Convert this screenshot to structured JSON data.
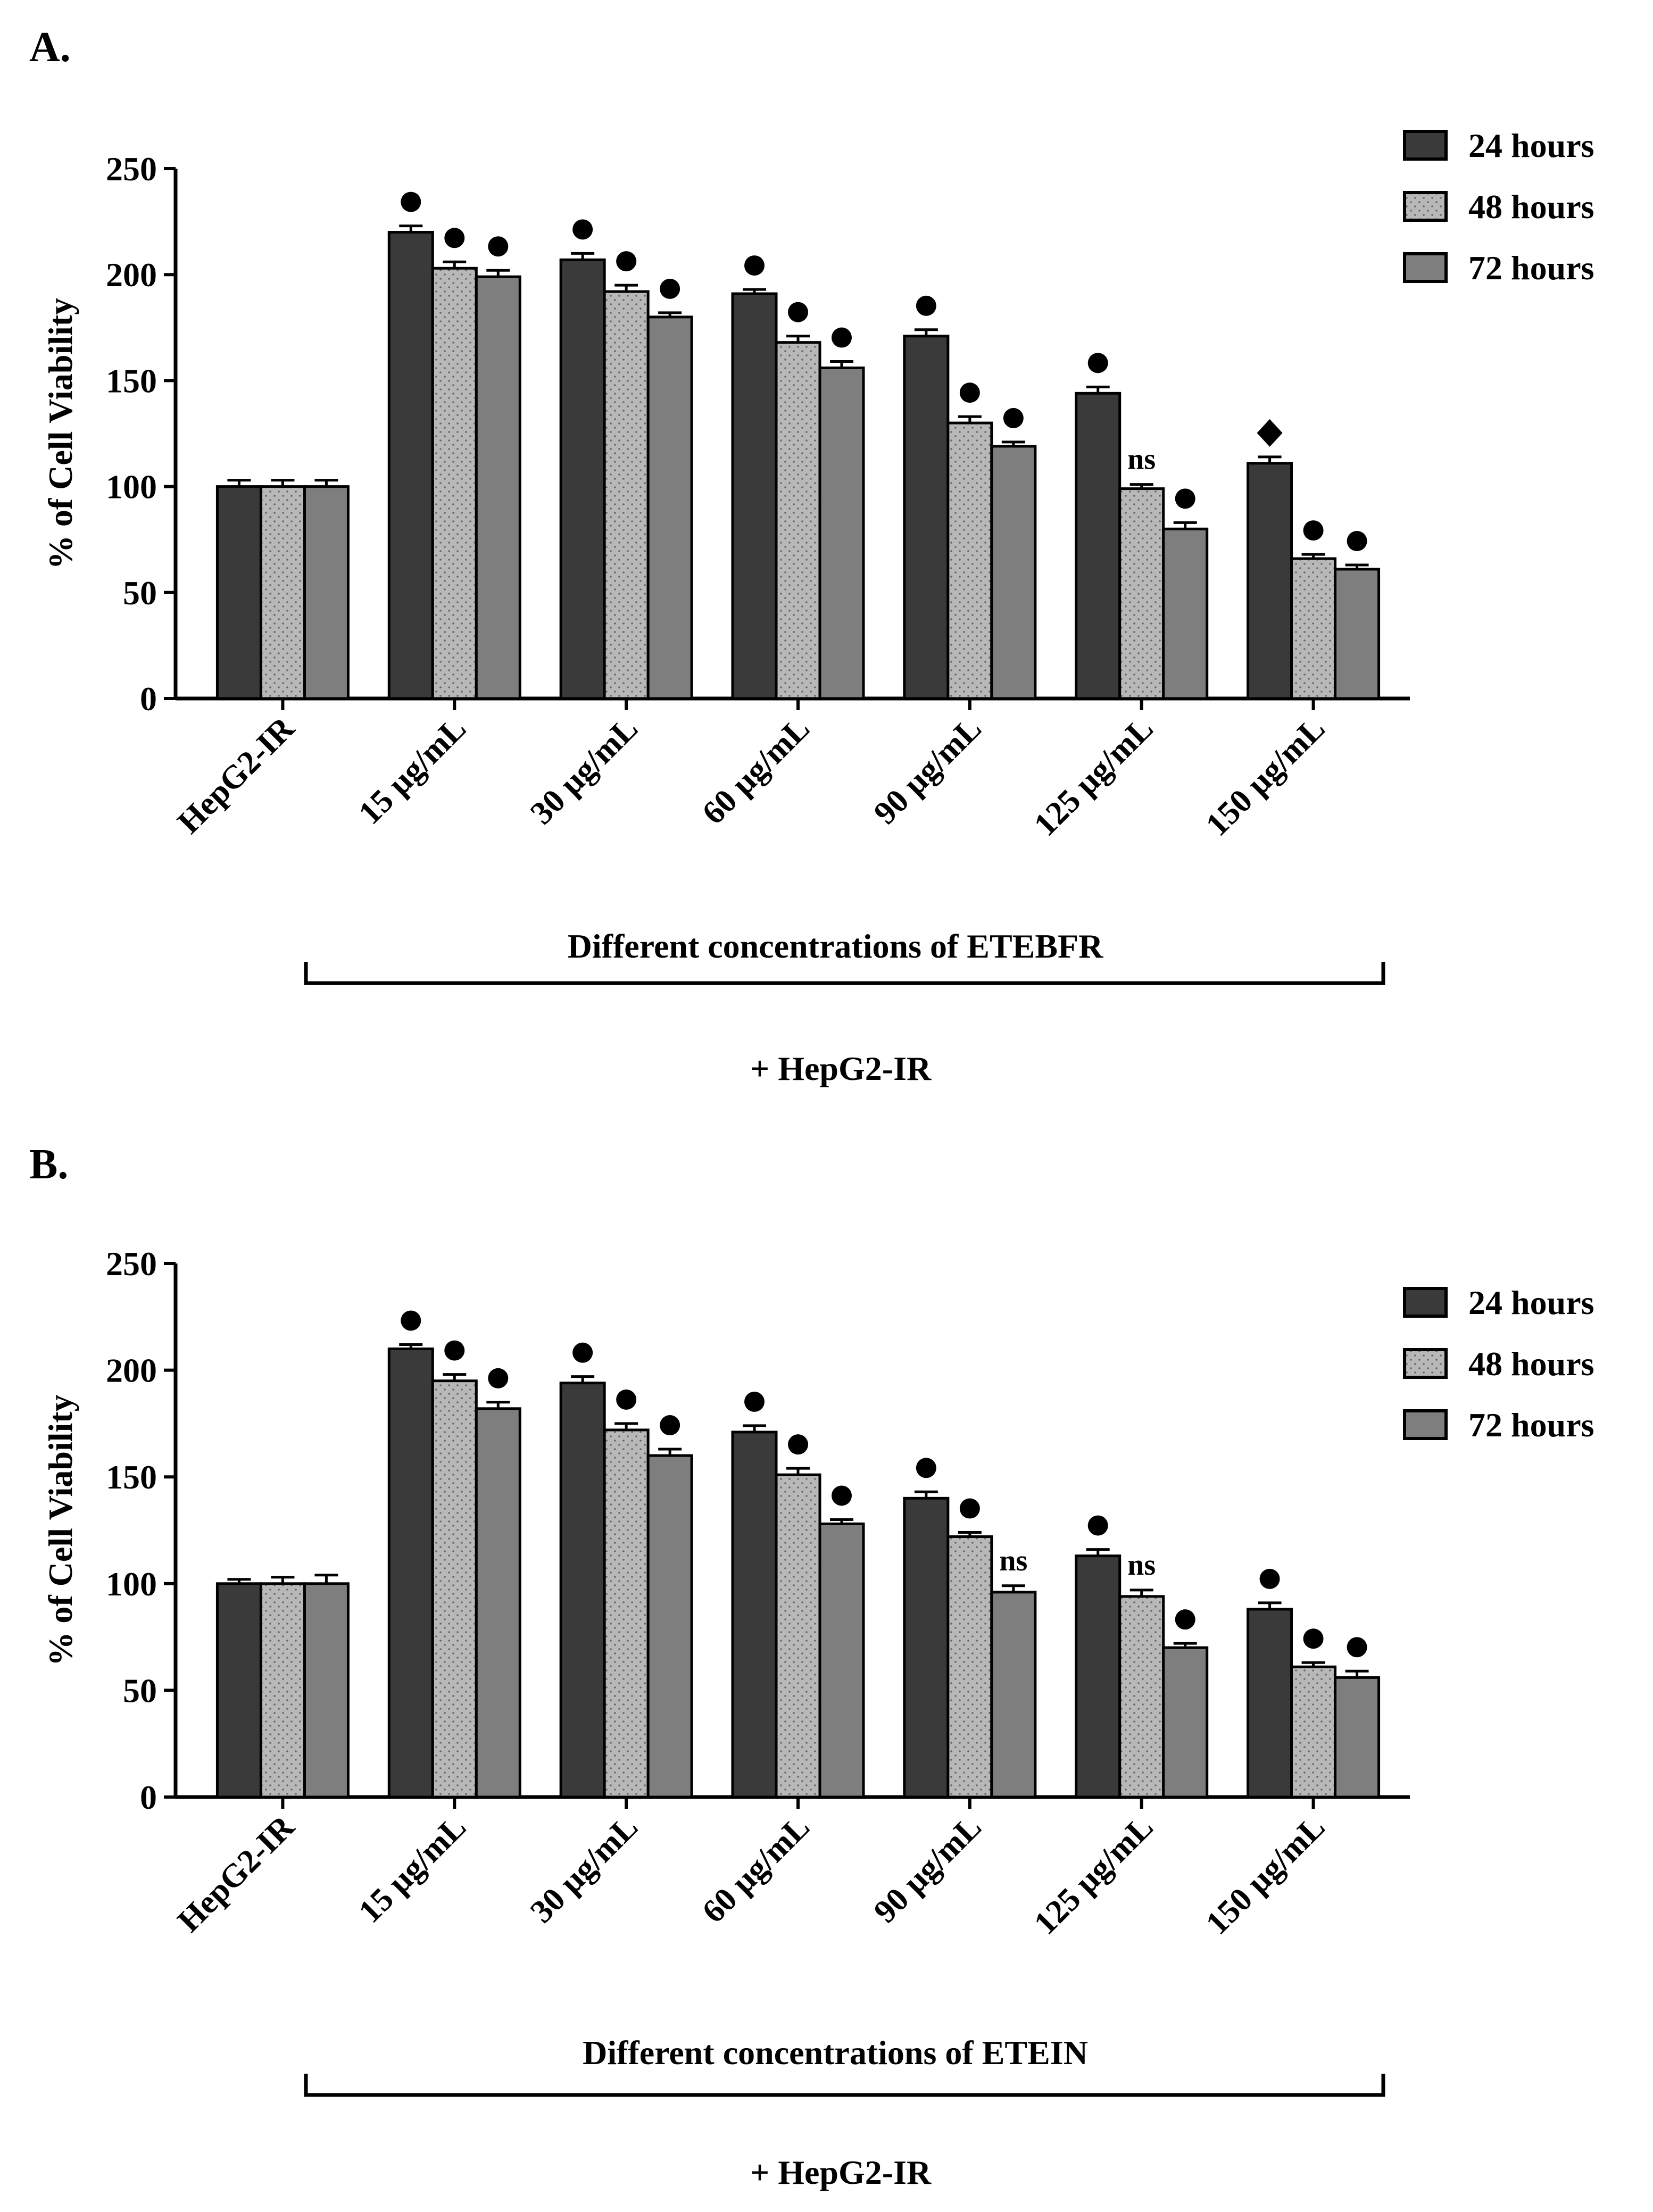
{
  "chart_data": [
    {
      "type": "bar",
      "panel_label": "A.",
      "title": "",
      "ylabel": "% of Cell Viability",
      "xlabel": "",
      "ylim": [
        0,
        250
      ],
      "yticks": [
        "0",
        "50",
        "100",
        "150",
        "200",
        "250"
      ],
      "categories": [
        "HepG2-IR",
        "15 µg/mL",
        "30 µg/mL",
        "60 µg/mL",
        "90 µg/mL",
        "125 µg/mL",
        "150 µg/mL"
      ],
      "series": [
        {
          "name": "24 hours",
          "values": [
            100,
            220,
            207,
            191,
            171,
            144,
            111
          ],
          "errors": [
            3,
            3,
            3,
            2,
            3,
            3,
            3
          ],
          "marks": [
            "",
            "dot",
            "dot",
            "dot",
            "dot",
            "dot",
            "diamond"
          ]
        },
        {
          "name": "48 hours",
          "values": [
            100,
            203,
            192,
            168,
            130,
            99,
            66
          ],
          "errors": [
            3,
            3,
            3,
            3,
            3,
            2,
            2
          ],
          "marks": [
            "",
            "dot",
            "dot",
            "dot",
            "dot",
            "ns",
            "dot"
          ]
        },
        {
          "name": "72 hours",
          "values": [
            100,
            199,
            180,
            156,
            119,
            80,
            61
          ],
          "errors": [
            3,
            3,
            2,
            3,
            2,
            3,
            2
          ],
          "marks": [
            "",
            "dot",
            "dot",
            "dot",
            "dot",
            "dot",
            "dot"
          ]
        }
      ],
      "colors": [
        "#3a3a3a",
        "#b8b8b8",
        "#7e7e7e"
      ],
      "group_label": "Different concentrations of ETEBFR",
      "footer": "+ HepG2-IR",
      "legend_position": "top-right"
    },
    {
      "type": "bar",
      "panel_label": "B.",
      "title": "",
      "ylabel": "% of Cell Viability",
      "xlabel": "",
      "ylim": [
        0,
        250
      ],
      "yticks": [
        "0",
        "50",
        "100",
        "150",
        "200",
        "250"
      ],
      "categories": [
        "HepG2-IR",
        "15 µg/mL",
        "30 µg/mL",
        "60 µg/mL",
        "90 µg/mL",
        "125 µg/mL",
        "150 µg/mL"
      ],
      "series": [
        {
          "name": "24 hours",
          "values": [
            100,
            210,
            194,
            171,
            140,
            113,
            88
          ],
          "errors": [
            2,
            2,
            3,
            3,
            3,
            3,
            3
          ],
          "marks": [
            "",
            "dot",
            "dot",
            "dot",
            "dot",
            "dot",
            "dot"
          ]
        },
        {
          "name": "48 hours",
          "values": [
            100,
            195,
            172,
            151,
            122,
            94,
            61
          ],
          "errors": [
            3,
            3,
            3,
            3,
            2,
            3,
            2
          ],
          "marks": [
            "",
            "dot",
            "dot",
            "dot",
            "dot",
            "ns",
            "dot"
          ]
        },
        {
          "name": "72 hours",
          "values": [
            100,
            182,
            160,
            128,
            96,
            70,
            56
          ],
          "errors": [
            4,
            3,
            3,
            2,
            3,
            2,
            3
          ],
          "marks": [
            "",
            "dot",
            "dot",
            "dot",
            "ns",
            "dot",
            "dot"
          ]
        }
      ],
      "colors": [
        "#3a3a3a",
        "#b8b8b8",
        "#7e7e7e"
      ],
      "group_label": "Different concentrations of ETEIN",
      "footer": "+ HepG2-IR",
      "legend_position": "top-right"
    }
  ]
}
